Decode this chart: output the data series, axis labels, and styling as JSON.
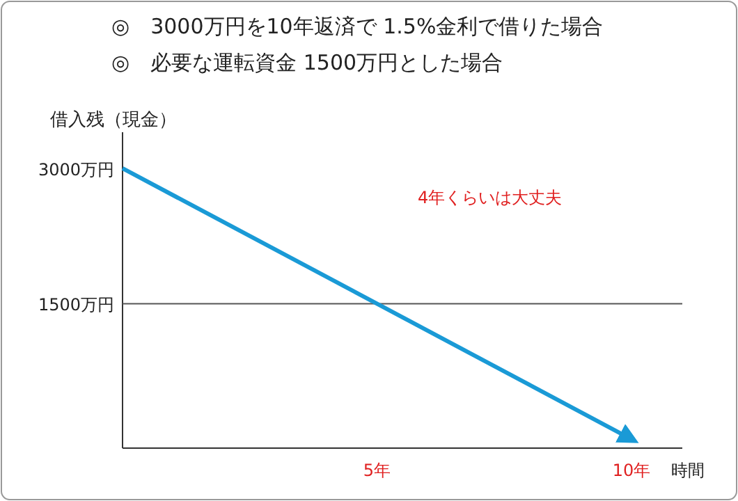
{
  "chart_data": {
    "type": "line",
    "title": "◎　3000万円を10年返済で 1.5%金利で借りた場合",
    "subtitle": "◎　必要な運転資金 1500万円とした場合",
    "ylabel": "借入残（現金）",
    "xlabel": "時間",
    "x": [
      0,
      10
    ],
    "series": [
      {
        "color": "#1a9ad6",
        "values": [
          3000,
          0
        ]
      }
    ],
    "xlim": [
      0,
      11
    ],
    "xticks": [
      {
        "value": 5,
        "label": "5年"
      },
      {
        "value": 10,
        "label": "10年"
      }
    ],
    "ylim": [
      -100,
      3400
    ],
    "yticks": [
      {
        "value": 1500,
        "label": "1500万円"
      },
      {
        "value": 3000,
        "label": "3000万円"
      }
    ],
    "ref_lines": [
      {
        "axis": "y",
        "value": 1500,
        "color": "#555555"
      }
    ],
    "annotations": [
      "4年くらいは大丈夫"
    ],
    "grid": false
  }
}
